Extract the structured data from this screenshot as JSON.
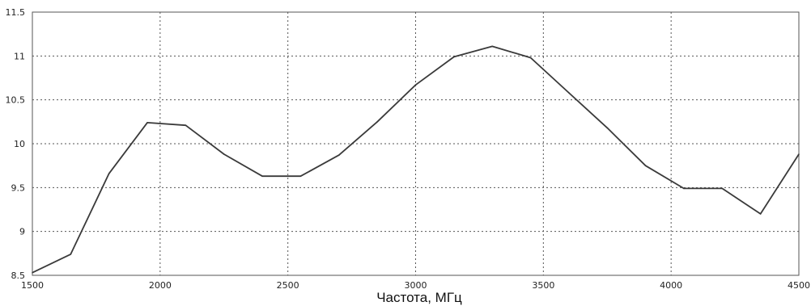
{
  "chart_data": {
    "type": "line",
    "xlabel": "Частота, МГц",
    "ylabel": "",
    "xlim": [
      1500,
      4500
    ],
    "ylim": [
      8.5,
      11.5
    ],
    "x_ticks": [
      "1500",
      "2000",
      "2500",
      "3000",
      "3500",
      "4000",
      "4500"
    ],
    "y_ticks": [
      "8.5",
      "9",
      "9.5",
      "10",
      "10.5",
      "11",
      "11.5"
    ],
    "grid": true,
    "series": [
      {
        "x": [
          1500,
          1650,
          1800,
          1950,
          2100,
          2250,
          2400,
          2550,
          2700,
          2850,
          3000,
          3150,
          3300,
          3450,
          3600,
          3750,
          3900,
          4050,
          4200,
          4350,
          4500
        ],
        "values": [
          8.53,
          8.74,
          9.66,
          10.24,
          10.21,
          9.88,
          9.63,
          9.63,
          9.87,
          10.25,
          10.67,
          10.99,
          11.11,
          10.98,
          10.58,
          10.18,
          9.75,
          9.49,
          9.49,
          9.2,
          9.88
        ]
      }
    ]
  }
}
